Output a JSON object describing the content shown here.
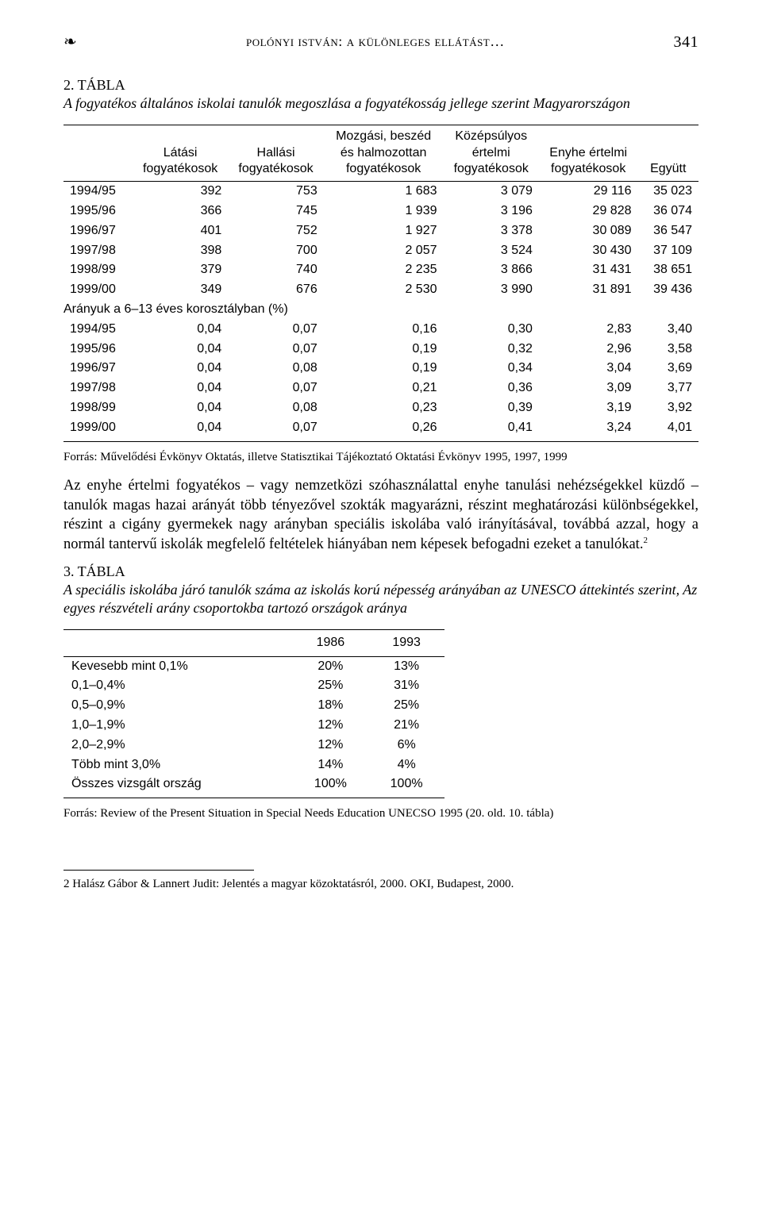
{
  "running_head": {
    "ornament": "❧",
    "title": "polónyi istván: a különleges ellátást…",
    "page": "341"
  },
  "table2": {
    "label": "2. TÁBLA",
    "title": "A fogyatékos általános iskolai tanulók megoszlása a fogyatékosság jellege szerint Magyarországon",
    "headers": {
      "year": "",
      "c1a": "Látási",
      "c1b": "fogyatékosok",
      "c2a": "Hallási",
      "c2b": "fogyatékosok",
      "c3a": "Mozgási, beszéd",
      "c3b": "és halmozottan",
      "c3c": "fogyatékosok",
      "c4a": "Középsúlyos",
      "c4b": "értelmi",
      "c4c": "fogyatékosok",
      "c5a": "Enyhe értelmi",
      "c5b": "fogyatékosok",
      "c6": "Együtt"
    },
    "rows_abs": [
      {
        "year": "1994/95",
        "v1": "392",
        "v2": "753",
        "v3": "1 683",
        "v4": "3 079",
        "v5": "29 116",
        "v6": "35 023"
      },
      {
        "year": "1995/96",
        "v1": "366",
        "v2": "745",
        "v3": "1 939",
        "v4": "3 196",
        "v5": "29 828",
        "v6": "36 074"
      },
      {
        "year": "1996/97",
        "v1": "401",
        "v2": "752",
        "v3": "1 927",
        "v4": "3 378",
        "v5": "30 089",
        "v6": "36 547"
      },
      {
        "year": "1997/98",
        "v1": "398",
        "v2": "700",
        "v3": "2 057",
        "v4": "3 524",
        "v5": "30 430",
        "v6": "37 109"
      },
      {
        "year": "1998/99",
        "v1": "379",
        "v2": "740",
        "v3": "2 235",
        "v4": "3 866",
        "v5": "31 431",
        "v6": "38 651"
      },
      {
        "year": "1999/00",
        "v1": "349",
        "v2": "676",
        "v3": "2 530",
        "v4": "3 990",
        "v5": "31 891",
        "v6": "39 436"
      }
    ],
    "section_label": "Arányuk a 6–13 éves korosztályban (%)",
    "rows_pct": [
      {
        "year": "1994/95",
        "v1": "0,04",
        "v2": "0,07",
        "v3": "0,16",
        "v4": "0,30",
        "v5": "2,83",
        "v6": "3,40"
      },
      {
        "year": "1995/96",
        "v1": "0,04",
        "v2": "0,07",
        "v3": "0,19",
        "v4": "0,32",
        "v5": "2,96",
        "v6": "3,58"
      },
      {
        "year": "1996/97",
        "v1": "0,04",
        "v2": "0,08",
        "v3": "0,19",
        "v4": "0,34",
        "v5": "3,04",
        "v6": "3,69"
      },
      {
        "year": "1997/98",
        "v1": "0,04",
        "v2": "0,07",
        "v3": "0,21",
        "v4": "0,36",
        "v5": "3,09",
        "v6": "3,77"
      },
      {
        "year": "1998/99",
        "v1": "0,04",
        "v2": "0,08",
        "v3": "0,23",
        "v4": "0,39",
        "v5": "3,19",
        "v6": "3,92"
      },
      {
        "year": "1999/00",
        "v1": "0,04",
        "v2": "0,07",
        "v3": "0,26",
        "v4": "0,41",
        "v5": "3,24",
        "v6": "4,01"
      }
    ],
    "source": "Forrás: Művelődési Évkönyv Oktatás, illetve Statisztikai Tájékoztató Oktatási Évkönyv 1995, 1997, 1999"
  },
  "paragraph": "Az enyhe értelmi fogyatékos – vagy nemzetközi szóhasználattal enyhe tanulási nehézségekkel küzdő – tanulók magas hazai arányát több tényezővel szokták magyarázni, részint meghatározási különbségekkel, részint a cigány gyermekek nagy arányban speciális iskolába való irányításával, továbbá azzal, hogy a normál tantervű iskolák megfelelő feltételek hiányában nem képesek befogadni ezeket a tanulókat.",
  "footnote_mark": "2",
  "table3": {
    "label": "3. TÁBLA",
    "title": "A speciális iskolába járó tanulók száma az iskolás korú népesség arányában az UNESCO áttekintés szerint, Az egyes részvételi arány csoportokba tartozó országok aránya",
    "headers": {
      "c1": "",
      "c2": "1986",
      "c3": "1993"
    },
    "rows": [
      {
        "c1": "Kevesebb mint 0,1%",
        "c2": "20%",
        "c3": "13%"
      },
      {
        "c1": "0,1–0,4%",
        "c2": "25%",
        "c3": "31%"
      },
      {
        "c1": "0,5–0,9%",
        "c2": "18%",
        "c3": "25%"
      },
      {
        "c1": "1,0–1,9%",
        "c2": "12%",
        "c3": "21%"
      },
      {
        "c1": "2,0–2,9%",
        "c2": "12%",
        "c3": "6%"
      },
      {
        "c1": "Több mint 3,0%",
        "c2": "14%",
        "c3": "4%"
      },
      {
        "c1": "Összes vizsgált ország",
        "c2": "100%",
        "c3": "100%"
      }
    ],
    "source": "Forrás: Review of the Present Situation in Special Needs Education UNECSO 1995 (20. old. 10. tábla)"
  },
  "footnote": "2 Halász Gábor & Lannert Judit: Jelentés a magyar közoktatásról, 2000. OKI, Budapest, 2000."
}
